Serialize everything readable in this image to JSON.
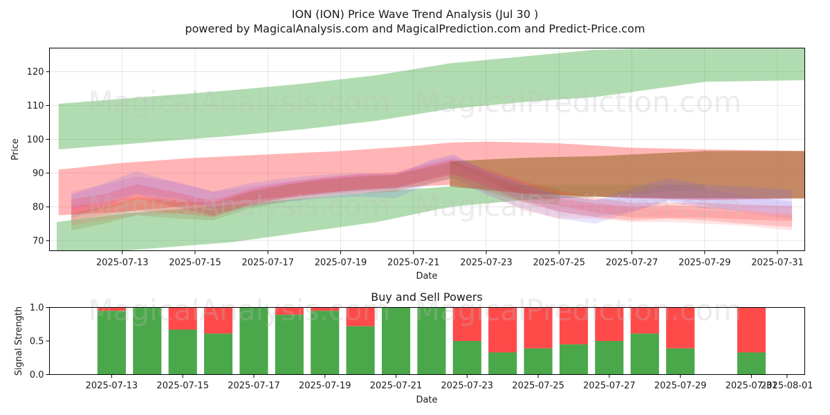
{
  "header": {
    "title": "ION (ION) Price Wave Trend Analysis (Jul 30 )",
    "subtitle": "powered by MagicalAnalysis.com and MagicalPrediction.com and Predict-Price.com"
  },
  "watermarks": [
    "MagicalAnalysis.com",
    "MagicalPrediction.com"
  ],
  "chart_data": [
    {
      "type": "area",
      "title": "",
      "xlabel": "Date",
      "ylabel": "Price",
      "xlim": [
        "2025-07-11",
        "2025-07-31.75"
      ],
      "ylim": [
        67,
        127
      ],
      "grid": true,
      "x_ticks": [
        "2025-07-13",
        "2025-07-15",
        "2025-07-17",
        "2025-07-19",
        "2025-07-21",
        "2025-07-23",
        "2025-07-25",
        "2025-07-27",
        "2025-07-29",
        "2025-07-31"
      ],
      "y_ticks": [
        70,
        80,
        90,
        100,
        110,
        120
      ],
      "bands": [
        {
          "name": "upper trend",
          "color": "#2ca02c",
          "opacity": 0.37,
          "x": [
            11.25,
            13,
            16,
            18,
            20,
            22,
            24,
            26,
            28,
            29,
            31.8
          ],
          "lower": [
            97,
            98.5,
            101,
            103,
            105.5,
            109,
            111,
            112.5,
            115.5,
            117,
            117.5
          ],
          "upper": [
            110.5,
            112,
            114.5,
            116.5,
            119,
            122.5,
            124.5,
            126.5,
            127,
            127,
            127
          ]
        },
        {
          "name": "lower trend",
          "color": "#2ca02c",
          "opacity": 0.37,
          "x": [
            11.2,
            13,
            16,
            18,
            20,
            22,
            24,
            26,
            28,
            29
          ],
          "lower": [
            67,
            67,
            69.5,
            72.5,
            75.5,
            80,
            82,
            83,
            84.5,
            85
          ],
          "upper": [
            75.5,
            78,
            80.5,
            82.5,
            84.5,
            86,
            86.5,
            86.5,
            86.5,
            86.5
          ]
        },
        {
          "name": "red envelope",
          "color": "#ff5a5a",
          "opacity": 0.45,
          "x": [
            11.25,
            13,
            15,
            17,
            19,
            21,
            22,
            23,
            25,
            27,
            29,
            31.8
          ],
          "lower": [
            77.5,
            78.5,
            80.5,
            82.5,
            84.5,
            86,
            86.5,
            85.5,
            83.5,
            82.5,
            82,
            82.5
          ],
          "upper": [
            91,
            93,
            94.5,
            95.5,
            96.5,
            98,
            99,
            99.3,
            98.8,
            97.5,
            97,
            96.5
          ]
        },
        {
          "name": "brown projection",
          "color": "#b07a4a",
          "opacity": 0.75,
          "x": [
            22,
            24,
            26,
            28,
            29,
            31.8
          ],
          "lower": [
            86,
            84,
            83,
            82.5,
            82.5,
            82.5
          ],
          "upper": [
            93.5,
            94.5,
            95,
            96,
            96.5,
            96.5
          ]
        }
      ],
      "wave_series": [
        {
          "name": "blue wave",
          "color": "#6a5cff",
          "opacity": 0.16,
          "half_width": 3.5,
          "x": [
            11.6,
            12.5,
            13.4,
            14.5,
            15.5,
            16.5,
            17.5,
            18.5,
            19.5,
            20.5,
            21.5,
            22.1,
            23,
            24,
            25,
            26,
            27,
            28,
            29,
            30,
            31.4
          ],
          "y": [
            80,
            83.5,
            87,
            83.5,
            81,
            83.5,
            85,
            86,
            86.5,
            86,
            90.5,
            92,
            87,
            83,
            80,
            78.5,
            82,
            85,
            83,
            82.5,
            81.5
          ]
        },
        {
          "name": "red wave A",
          "color": "#ff3b3b",
          "opacity": 0.22,
          "half_width": 2.2,
          "x": [
            11.6,
            12.5,
            13.4,
            14.5,
            15.5,
            16.5,
            17.5,
            18.5,
            19.5,
            20.5,
            21.5,
            22.1,
            23,
            24,
            25,
            26,
            27,
            28,
            29,
            30,
            31.4
          ],
          "y": [
            80,
            81.5,
            84.5,
            82,
            79.5,
            83,
            85,
            86.5,
            87.5,
            88,
            90.5,
            92,
            89,
            85.5,
            82.5,
            80.5,
            79,
            79,
            79,
            78.5,
            78
          ]
        },
        {
          "name": "red wave B",
          "color": "#ff3b3b",
          "opacity": 0.22,
          "half_width": 2.0,
          "x": [
            11.6,
            12.5,
            13.4,
            14.5,
            15.5,
            16.5,
            17.5,
            18.5,
            19.5,
            20.5,
            21.5,
            22.1,
            23,
            24,
            25,
            26,
            27,
            28,
            29,
            30,
            31.4
          ],
          "y": [
            78,
            79.5,
            81,
            80,
            79,
            82.5,
            84.5,
            86,
            87,
            87.5,
            90,
            91.5,
            88,
            83.5,
            80.5,
            79,
            78,
            78.5,
            78,
            77,
            76
          ]
        },
        {
          "name": "pink wave",
          "color": "#ff7f7f",
          "opacity": 0.2,
          "half_width": 2.0,
          "x": [
            11.6,
            12.5,
            13.4,
            14.5,
            15.5,
            16.5,
            17.5,
            18.5,
            19.5,
            20.5,
            21.5,
            22.1,
            23,
            24,
            25,
            26,
            27,
            28,
            29,
            30,
            31.4
          ],
          "y": [
            76.5,
            78,
            79.5,
            80,
            80.5,
            82,
            84,
            85,
            86,
            86.5,
            89,
            90.5,
            86,
            81,
            78.5,
            78.5,
            77.5,
            77.5,
            77,
            76.5,
            75
          ]
        },
        {
          "name": "olive wave",
          "color": "#8c7a2c",
          "opacity": 0.2,
          "half_width": 2.5,
          "x": [
            11.6,
            12.5,
            13.4,
            14.5,
            15.5,
            16.5,
            17.5,
            18.5,
            19.5,
            20.5,
            21.5,
            22.1,
            23,
            24,
            25
          ],
          "y": [
            75.5,
            77.5,
            80,
            79,
            78.5,
            82,
            84,
            85.5,
            86.5,
            87,
            89.5,
            91,
            87,
            84,
            83
          ]
        },
        {
          "name": "purple wave",
          "color": "#a35cc7",
          "opacity": 0.17,
          "half_width": 2.5,
          "x": [
            11.6,
            12.5,
            13.4,
            14.5,
            15.5,
            16.5,
            17.5,
            18.5,
            19.5,
            20.5,
            21.5,
            22.1,
            23,
            24,
            25,
            26,
            27,
            28,
            29,
            30,
            31.4
          ],
          "y": [
            82,
            84,
            86.5,
            85,
            82,
            83.5,
            85,
            86,
            87,
            87.5,
            91,
            92.5,
            88.5,
            84.5,
            81,
            79.5,
            81,
            84.5,
            83,
            81,
            79
          ]
        }
      ]
    },
    {
      "type": "bar",
      "title": "Buy and Sell Powers",
      "xlabel": "Date",
      "ylabel": "Signal Strength",
      "xlim": [
        "2025-07-11.25",
        "2025-08-01.5"
      ],
      "ylim": [
        0,
        1.0
      ],
      "x_ticks": [
        "2025-07-13",
        "2025-07-15",
        "2025-07-17",
        "2025-07-19",
        "2025-07-21",
        "2025-07-23",
        "2025-07-25",
        "2025-07-27",
        "2025-07-29",
        "2025-07-31",
        "2025-08-01"
      ],
      "y_ticks": [
        "0.0",
        "0.5",
        "1.0"
      ],
      "series": [
        {
          "name": "Buy Power",
          "color": "#4aa84a"
        },
        {
          "name": "Sell Power",
          "color": "#ff4a4a"
        }
      ],
      "dates": [
        "2025-07-13",
        "2025-07-14",
        "2025-07-15",
        "2025-07-16",
        "2025-07-17",
        "2025-07-18",
        "2025-07-19",
        "2025-07-20",
        "2025-07-21",
        "2025-07-22",
        "2025-07-23",
        "2025-07-24",
        "2025-07-25",
        "2025-07-26",
        "2025-07-27",
        "2025-07-28",
        "2025-07-29",
        "2025-07-31"
      ],
      "buy": [
        0.95,
        1.0,
        0.67,
        0.61,
        1.0,
        0.89,
        0.95,
        0.72,
        1.0,
        1.0,
        0.5,
        0.33,
        0.39,
        0.45,
        0.5,
        0.61,
        0.39,
        0.33
      ]
    }
  ]
}
